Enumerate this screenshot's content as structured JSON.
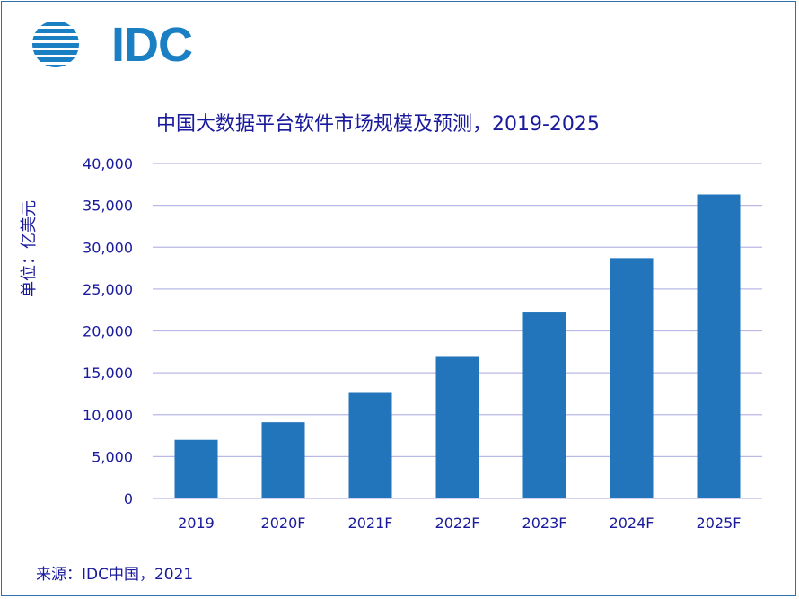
{
  "logo": {
    "text": "IDC",
    "color": "#1b7fc4"
  },
  "source": "来源：IDC中国，2021",
  "chart_data": {
    "type": "bar",
    "title": "中国大数据平台软件市场规模及预测，2019-2025",
    "ylabel": "单位：亿美元",
    "xlabel": "",
    "categories": [
      "2019",
      "2020F",
      "2021F",
      "2022F",
      "2023F",
      "2024F",
      "2025F"
    ],
    "values": [
      7000,
      9100,
      12600,
      17000,
      22300,
      28700,
      36300
    ],
    "ylim": [
      0,
      40000
    ],
    "yticks": [
      "0",
      "5,000",
      "10,000",
      "15,000",
      "20,000",
      "25,000",
      "30,000",
      "35,000",
      "40,000"
    ],
    "grid": true,
    "colors": {
      "bar": "#2275bb",
      "grid": "#b9b9e6",
      "text": "#1a1a9c"
    }
  }
}
